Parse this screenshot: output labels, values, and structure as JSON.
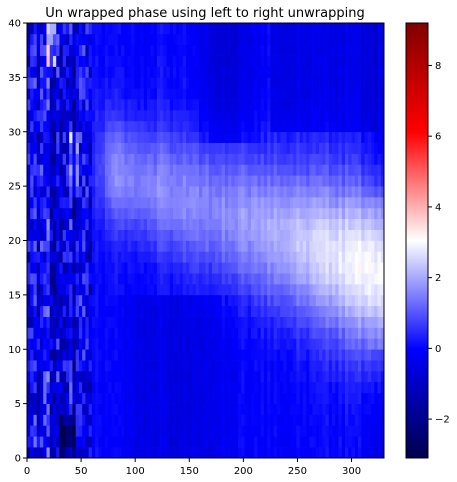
{
  "chart_data": {
    "type": "heatmap",
    "title": "Un wrapped phase using left to right unwrapping",
    "xlabel": "",
    "ylabel": "",
    "xlim": [
      0,
      330
    ],
    "ylim": [
      0,
      40
    ],
    "x_ticks": [
      0,
      50,
      100,
      150,
      200,
      250,
      300
    ],
    "y_ticks": [
      0,
      5,
      10,
      15,
      20,
      25,
      30,
      35,
      40
    ],
    "colorbar": {
      "colormap": "seismic",
      "range": [
        -3.1,
        9.2
      ],
      "ticks": [
        -2,
        0,
        2,
        4,
        6,
        8
      ]
    },
    "grid": false,
    "features": [
      {
        "description": "broad positive band",
        "x_range": [
          60,
          330
        ],
        "y_peak_left": 26,
        "y_peak_right": 17,
        "peak_value": 3.0
      },
      {
        "description": "noisy strongly negative vertical streaks",
        "x_range": [
          0,
          60
        ]
      },
      {
        "description": "weak negative regions",
        "areas": [
          "x 150-220, y 30-40",
          "x 80-200, y 0-15",
          "x 230-320, y 30-40"
        ],
        "value": -0.7
      }
    ]
  }
}
